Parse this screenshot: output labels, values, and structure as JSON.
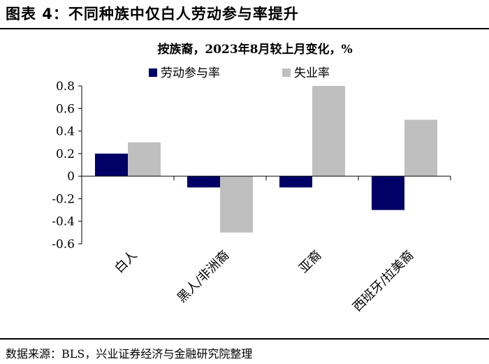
{
  "figure": {
    "title": "图表 4：不同种族中仅白人劳动参与率提升",
    "source": "数据来源：BLS，兴业证券经济与金融研究院整理"
  },
  "chart_data": {
    "type": "bar",
    "title": "按族裔，2023年8月较上月变化，%",
    "categories": [
      "白人",
      "黑人/非洲裔",
      "亚裔",
      "西班牙/拉美裔"
    ],
    "series": [
      {
        "name": "劳动参与率",
        "color": "#000066",
        "values": [
          0.2,
          -0.1,
          -0.1,
          -0.3
        ]
      },
      {
        "name": "失业率",
        "color": "#BFBFBF",
        "values": [
          0.3,
          -0.5,
          0.8,
          0.5
        ]
      }
    ],
    "ylim": [
      -0.6,
      0.8
    ],
    "yticks": [
      0.8,
      0.6,
      0.4,
      0.2,
      0,
      -0.2,
      -0.4,
      -0.6
    ],
    "ytick_labels": [
      "0.8",
      "0.6",
      "0.4",
      "0.2",
      "0",
      "-0.2",
      "-0.4",
      "-0.6"
    ],
    "legend_position": "top-center",
    "grid": false
  }
}
